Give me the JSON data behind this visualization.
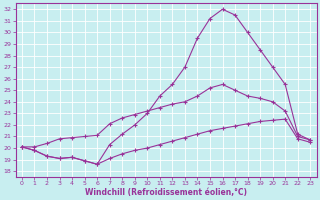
{
  "xlabel": "Windchill (Refroidissement éolien,°C)",
  "bg_color": "#c8eef0",
  "line_color": "#993399",
  "grid_color": "#ffffff",
  "xlim": [
    -0.5,
    23.5
  ],
  "ylim": [
    17.5,
    32.5
  ],
  "xticks": [
    0,
    1,
    2,
    3,
    4,
    5,
    6,
    7,
    8,
    9,
    10,
    11,
    12,
    13,
    14,
    15,
    16,
    17,
    18,
    19,
    20,
    21,
    22,
    23
  ],
  "yticks": [
    18,
    19,
    20,
    21,
    22,
    23,
    24,
    25,
    26,
    27,
    28,
    29,
    30,
    31,
    32
  ],
  "line1_x": [
    0,
    1,
    2,
    3,
    4,
    5,
    6,
    7,
    8,
    9,
    10,
    11,
    12,
    13,
    14,
    15,
    16,
    17,
    18,
    19,
    20,
    21,
    22,
    23
  ],
  "line1_y": [
    20.1,
    19.8,
    19.3,
    19.1,
    19.2,
    18.9,
    18.6,
    19.1,
    19.5,
    19.8,
    20.0,
    20.3,
    20.6,
    20.9,
    21.2,
    21.5,
    21.7,
    21.9,
    22.1,
    22.3,
    22.4,
    22.5,
    20.8,
    20.5
  ],
  "line2_x": [
    0,
    1,
    2,
    3,
    4,
    5,
    6,
    7,
    8,
    9,
    10,
    11,
    12,
    13,
    14,
    15,
    16,
    17,
    18,
    19,
    20,
    21,
    22,
    23
  ],
  "line2_y": [
    20.1,
    19.8,
    19.3,
    19.1,
    19.2,
    18.9,
    18.6,
    20.3,
    21.2,
    22.0,
    23.0,
    24.5,
    25.5,
    27.0,
    29.5,
    31.2,
    32.0,
    31.5,
    30.0,
    28.5,
    27.0,
    25.5,
    21.2,
    20.7
  ],
  "line3_x": [
    0,
    1,
    2,
    3,
    4,
    5,
    6,
    7,
    8,
    9,
    10,
    11,
    12,
    13,
    14,
    15,
    16,
    17,
    18,
    19,
    20,
    21,
    22,
    23
  ],
  "line3_y": [
    20.1,
    20.1,
    20.4,
    20.8,
    20.9,
    21.0,
    21.1,
    22.1,
    22.6,
    22.9,
    23.2,
    23.5,
    23.8,
    24.0,
    24.5,
    25.2,
    25.5,
    25.0,
    24.5,
    24.3,
    24.0,
    23.2,
    21.0,
    20.7
  ]
}
